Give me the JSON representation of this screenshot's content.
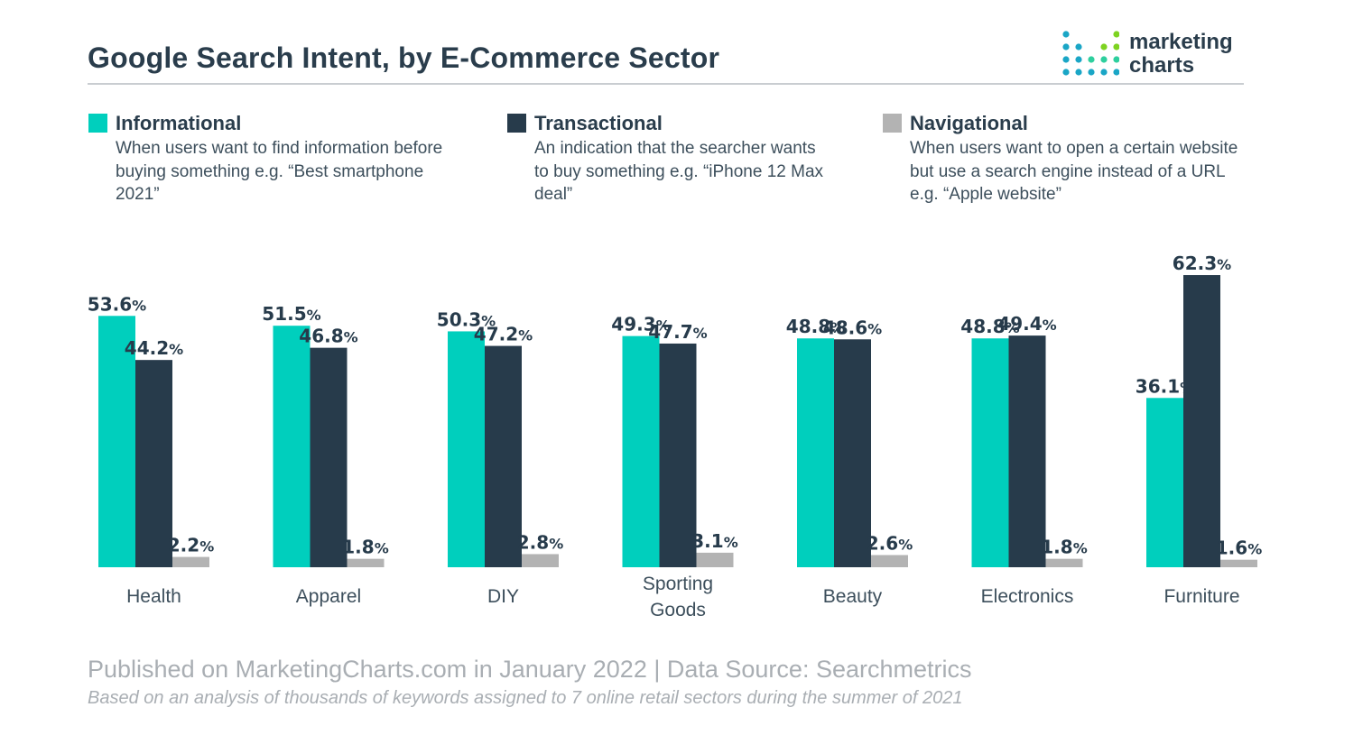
{
  "header": {
    "title": "Google Search Intent, by E-Commerce Sector",
    "logo_line1": "marketing",
    "logo_line2": "charts"
  },
  "legend": [
    {
      "name": "Informational",
      "color": "#00cfbd",
      "desc": "When users want to find information before buying something e.g. “Best smartphone 2021”"
    },
    {
      "name": "Transactional",
      "color": "#273b4b",
      "desc": "An indication that the searcher wants to buy something e.g. “iPhone 12 Max deal”"
    },
    {
      "name": "Navigational",
      "color": "#b3b3b3",
      "desc": "When users want to open a certain website but use a search engine instead of a URL e.g. “Apple website”"
    }
  ],
  "chart_data": {
    "type": "bar",
    "title": "Google Search Intent, by E-Commerce Sector",
    "categories": [
      "Health",
      "Apparel",
      "DIY",
      "Sporting Goods",
      "Beauty",
      "Electronics",
      "Furniture"
    ],
    "series": [
      {
        "name": "Informational",
        "color": "#00cfbd",
        "values": [
          53.6,
          51.5,
          50.3,
          49.3,
          48.8,
          48.8,
          36.1
        ]
      },
      {
        "name": "Transactional",
        "color": "#273b4b",
        "values": [
          44.2,
          46.8,
          47.2,
          47.7,
          48.6,
          49.4,
          62.3
        ]
      },
      {
        "name": "Navigational",
        "color": "#b3b3b3",
        "values": [
          2.2,
          1.8,
          2.8,
          3.1,
          2.6,
          1.8,
          1.6
        ]
      }
    ],
    "unit": "%",
    "ylim": [
      0,
      70
    ],
    "xlabel": "",
    "ylabel": "",
    "grid": false
  },
  "footer": {
    "published": "Published on MarketingCharts.com in January 2022 | Data Source: Searchmetrics",
    "note": "Based on an analysis of thousands of keywords assigned to 7 online retail sectors during the summer of 2021"
  }
}
